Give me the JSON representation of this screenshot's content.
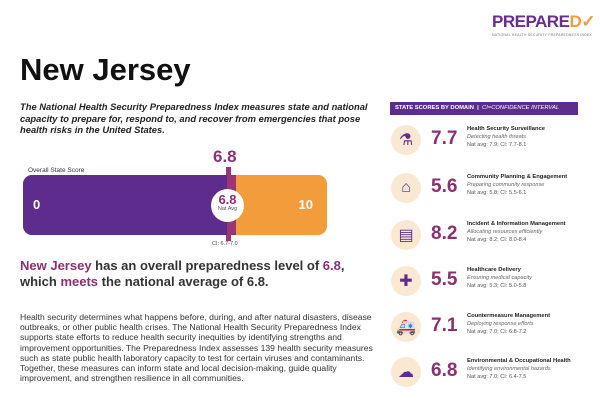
{
  "logo": {
    "word": "PREPARED",
    "subtitle": "NATIONAL HEALTH SECURITY PREPAREDNESS INDEX"
  },
  "title": "New Jersey",
  "intro": "The National Health Security Preparedness Index measures state and national capacity to prepare for, respond to, and recover from emergencies that pose health risks in the United States.",
  "overall": {
    "label": "Overall State Score",
    "score": "6.8",
    "score_value": 6.8,
    "min": "0",
    "max": "10",
    "nat_avg": "6.8",
    "nat_avg_label": "Nat Avg",
    "ci": "CI: 6.7-7.0",
    "ci_low": 6.7,
    "ci_high": 7.0
  },
  "summary": {
    "state": "New Jersey",
    "text1": " has an overall preparedness level of ",
    "score": "6.8",
    "text2": ", which ",
    "meets": "meets",
    "text3": " the national average of 6.8."
  },
  "body": "Health security determines what happens before, during, and after natural disasters, disease outbreaks, or other public health crises. The National Health Security Preparedness Index supports state efforts to reduce health security inequities by identifying strengths and improvement opportunities. The Preparedness Index assesses 139 health security measures such as state public health laboratory capacity to test for certain viruses and contaminants. Together, these measures can inform state and local decision-making, guide quality improvement, and strengthen resilience in all communities.",
  "panel": {
    "heading": "STATE SCORES BY DOMAIN",
    "separator": "|",
    "ci_note": "CI=CONFIDENCE INTERVAL"
  },
  "domains": [
    {
      "icon": "flask-icon",
      "score": "7.7",
      "title": "Health Security Surveillance",
      "subtitle": "Detecting health threats",
      "nat": "Nat avg: 7.9; CI: 7.7-8.1"
    },
    {
      "icon": "houses-icon",
      "score": "5.6",
      "title": "Community Planning & Engagement",
      "subtitle": "Preparing community response",
      "nat": "Nat avg: 5.8; CI: 5.5-6.1"
    },
    {
      "icon": "monitor-chart-icon",
      "score": "8.2",
      "title": "Incident & Information Management",
      "subtitle": "Allocating resources efficiently",
      "nat": "Nat avg: 8.2; CI: 8.0-8.4"
    },
    {
      "icon": "medical-kit-icon",
      "score": "5.5",
      "title": "Healthcare Delivery",
      "subtitle": "Ensuring medical capacity",
      "nat": "Nat avg: 5.3; CI: 5.0-5.8"
    },
    {
      "icon": "ambulance-icon",
      "score": "7.1",
      "title": "Countermeasure Management",
      "subtitle": "Deploying response efforts",
      "nat": "Nat avg: 7.0; CI: 6.8-7.2"
    },
    {
      "icon": "storm-cloud-icon",
      "score": "6.8",
      "title": "Environmental & Occupational Health",
      "subtitle": "Identifying environmental hazards",
      "nat": "Nat avg: 7.0; CI: 6.4-7.5"
    }
  ],
  "colors": {
    "purple": "#5d2c8c",
    "orange": "#f39c3c",
    "magenta": "#8e2f70"
  }
}
